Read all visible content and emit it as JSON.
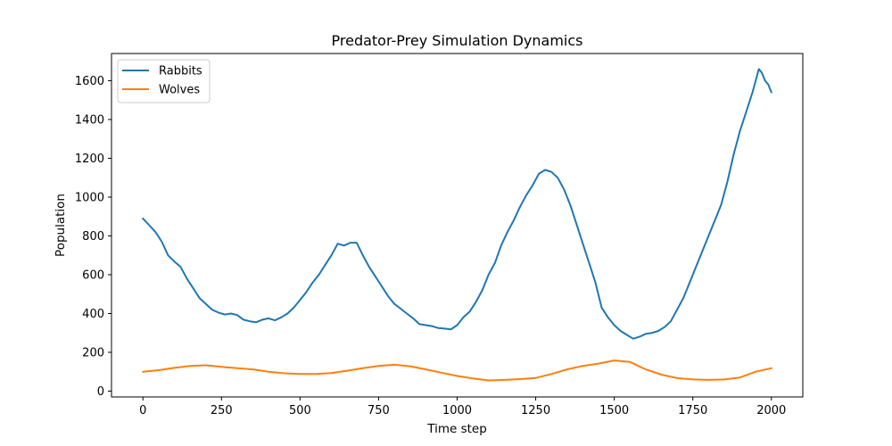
{
  "chart_data": {
    "type": "line",
    "title": "Predator-Prey Simulation Dynamics",
    "xlabel": "Time step",
    "ylabel": "Population",
    "xlim": [
      -100,
      2100
    ],
    "ylim": [
      -30,
      1740
    ],
    "xticks": [
      0,
      250,
      500,
      750,
      1000,
      1250,
      1500,
      1750,
      2000
    ],
    "yticks": [
      0,
      200,
      400,
      600,
      800,
      1000,
      1200,
      1400,
      1600
    ],
    "grid": false,
    "legend_position": "top-left",
    "series": [
      {
        "name": "Rabbits",
        "color": "#1f77b4",
        "x": [
          0,
          20,
          40,
          60,
          80,
          100,
          120,
          140,
          160,
          180,
          200,
          220,
          240,
          260,
          280,
          300,
          320,
          340,
          360,
          380,
          400,
          420,
          440,
          460,
          480,
          500,
          520,
          540,
          560,
          580,
          600,
          620,
          640,
          660,
          680,
          700,
          720,
          740,
          760,
          780,
          800,
          820,
          840,
          860,
          880,
          900,
          920,
          940,
          960,
          980,
          1000,
          1020,
          1040,
          1060,
          1080,
          1100,
          1120,
          1140,
          1160,
          1180,
          1200,
          1220,
          1240,
          1260,
          1280,
          1300,
          1320,
          1340,
          1360,
          1380,
          1400,
          1420,
          1440,
          1460,
          1480,
          1500,
          1520,
          1540,
          1560,
          1580,
          1600,
          1620,
          1640,
          1660,
          1680,
          1700,
          1720,
          1740,
          1760,
          1780,
          1800,
          1820,
          1840,
          1860,
          1880,
          1900,
          1920,
          1940,
          1950,
          1960,
          1970,
          1980,
          1990,
          2000
        ],
        "values": [
          890,
          855,
          820,
          770,
          700,
          668,
          640,
          580,
          530,
          480,
          450,
          420,
          405,
          395,
          400,
          392,
          368,
          360,
          355,
          368,
          375,
          365,
          380,
          400,
          430,
          470,
          510,
          560,
          600,
          650,
          700,
          760,
          750,
          765,
          765,
          700,
          640,
          590,
          540,
          490,
          450,
          425,
          400,
          375,
          345,
          340,
          335,
          325,
          322,
          318,
          340,
          380,
          410,
          460,
          520,
          600,
          660,
          750,
          820,
          880,
          950,
          1010,
          1060,
          1120,
          1140,
          1130,
          1100,
          1040,
          960,
          860,
          760,
          660,
          560,
          430,
          380,
          340,
          310,
          290,
          270,
          280,
          295,
          300,
          310,
          330,
          360,
          420,
          480,
          560,
          640,
          720,
          800,
          880,
          960,
          1080,
          1220,
          1340,
          1440,
          1540,
          1600,
          1660,
          1640,
          1600,
          1580,
          1540
        ]
      },
      {
        "name": "Wolves",
        "color": "#ff7f0e",
        "x": [
          0,
          50,
          100,
          150,
          200,
          250,
          300,
          350,
          400,
          450,
          500,
          550,
          600,
          650,
          700,
          750,
          800,
          850,
          900,
          950,
          1000,
          1050,
          1100,
          1150,
          1200,
          1250,
          1300,
          1350,
          1400,
          1450,
          1500,
          1550,
          1600,
          1650,
          1700,
          1750,
          1800,
          1850,
          1900,
          1950,
          2000
        ],
        "values": [
          100,
          108,
          120,
          130,
          133,
          125,
          118,
          112,
          100,
          92,
          88,
          88,
          93,
          105,
          118,
          130,
          136,
          128,
          112,
          95,
          78,
          65,
          55,
          58,
          62,
          68,
          88,
          112,
          130,
          142,
          158,
          150,
          112,
          85,
          67,
          60,
          58,
          60,
          70,
          100,
          118
        ]
      }
    ]
  }
}
